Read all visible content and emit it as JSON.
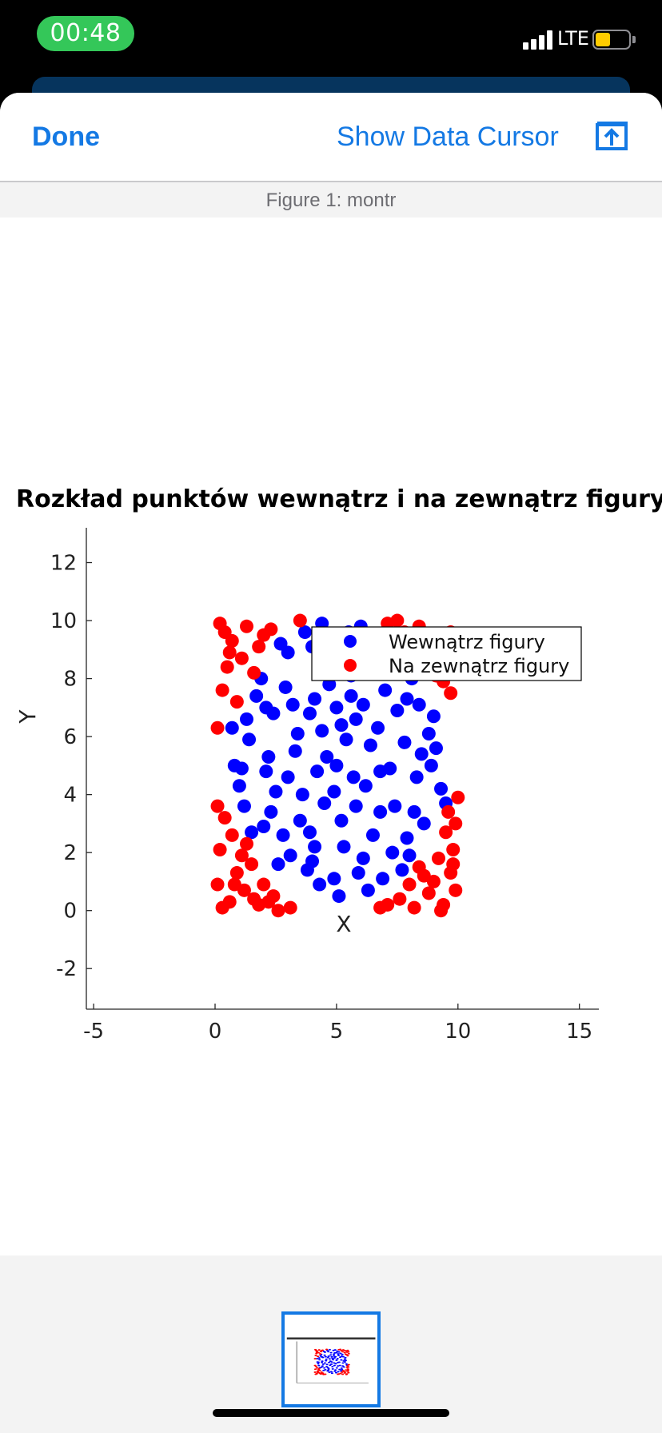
{
  "status": {
    "time": "00:48",
    "network": "LTE",
    "battery_level": 0.45
  },
  "nav": {
    "done_label": "Done",
    "cursor_label": "Show Data Cursor",
    "share_icon": "share-icon"
  },
  "figure": {
    "window_title": "Figure 1: montr"
  },
  "colors": {
    "accent": "#1479e4",
    "inside": "#0000ff",
    "outside": "#ff0000",
    "time_pill": "#34c759"
  },
  "chart_data": {
    "type": "scatter",
    "title": "Rozkład punktów wewnątrz i na zewnątrz figury",
    "xlabel": "X",
    "ylabel": "Y",
    "xlim": [
      -5.3,
      15.8
    ],
    "ylim": [
      -3.4,
      13.2
    ],
    "xticks": [
      -5,
      0,
      5,
      10,
      15
    ],
    "xtick_labels": [
      "-5",
      "0",
      "5",
      "10",
      "15"
    ],
    "yticks": [
      -2,
      0,
      2,
      4,
      6,
      8,
      10,
      12
    ],
    "ytick_labels": [
      "-2",
      "0",
      "2",
      "4",
      "6",
      "8",
      "10",
      "12"
    ],
    "grid": false,
    "legend_position": "top-right",
    "region": {
      "shape": "circle",
      "center": [
        5,
        5
      ],
      "radius": 5
    },
    "series": [
      {
        "name": "Wewnątrz figury",
        "color": "#0000ff",
        "points": [
          [
            5.0,
            5.0
          ],
          [
            3.2,
            7.1
          ],
          [
            6.8,
            3.4
          ],
          [
            4.1,
            2.2
          ],
          [
            7.5,
            6.9
          ],
          [
            2.1,
            4.8
          ],
          [
            5.9,
            8.6
          ],
          [
            3.6,
            4.0
          ],
          [
            6.4,
            5.7
          ],
          [
            4.9,
            1.1
          ],
          [
            8.3,
            4.6
          ],
          [
            1.4,
            5.9
          ],
          [
            5.5,
            9.6
          ],
          [
            2.8,
            2.6
          ],
          [
            7.9,
            2.5
          ],
          [
            4.4,
            6.2
          ],
          [
            6.1,
            1.8
          ],
          [
            3.0,
            8.9
          ],
          [
            8.8,
            6.1
          ],
          [
            1.2,
            3.6
          ],
          [
            5.2,
            3.1
          ],
          [
            6.9,
            8.2
          ],
          [
            2.4,
            6.8
          ],
          [
            4.7,
            7.8
          ],
          [
            7.2,
            4.9
          ],
          [
            3.8,
            1.4
          ],
          [
            9.3,
            4.2
          ],
          [
            0.8,
            5.0
          ],
          [
            5.8,
            6.6
          ],
          [
            4.0,
            9.1
          ],
          [
            6.6,
            9.3
          ],
          [
            2.0,
            2.9
          ],
          [
            8.1,
            8.0
          ],
          [
            3.3,
            5.5
          ],
          [
            5.1,
            0.5
          ],
          [
            7.7,
            1.4
          ],
          [
            1.7,
            7.4
          ],
          [
            6.2,
            4.3
          ],
          [
            4.5,
            3.7
          ],
          [
            8.6,
            3.0
          ],
          [
            2.7,
            9.2
          ],
          [
            5.6,
            7.4
          ],
          [
            3.9,
            6.8
          ],
          [
            7.0,
            7.6
          ],
          [
            1.0,
            4.3
          ],
          [
            6.3,
            0.7
          ],
          [
            4.2,
            4.8
          ],
          [
            9.1,
            5.6
          ],
          [
            2.2,
            5.3
          ],
          [
            5.3,
            2.2
          ],
          [
            7.4,
            3.6
          ],
          [
            3.5,
            3.1
          ],
          [
            6.0,
            9.8
          ],
          [
            4.8,
            8.7
          ],
          [
            8.4,
            7.1
          ],
          [
            1.5,
            2.7
          ],
          [
            5.7,
            4.6
          ],
          [
            2.9,
            7.7
          ],
          [
            7.8,
            5.8
          ],
          [
            4.3,
            0.9
          ],
          [
            6.7,
            6.3
          ],
          [
            3.1,
            1.9
          ],
          [
            9.5,
            3.7
          ],
          [
            0.7,
            6.3
          ],
          [
            5.4,
            5.9
          ],
          [
            2.5,
            4.1
          ],
          [
            7.1,
            9.0
          ],
          [
            4.6,
            5.3
          ],
          [
            8.0,
            1.9
          ],
          [
            1.9,
            8.0
          ],
          [
            6.5,
            2.6
          ],
          [
            3.7,
            9.6
          ],
          [
            5.0,
            7.0
          ],
          [
            8.9,
            5.0
          ],
          [
            2.3,
            3.4
          ],
          [
            4.1,
            7.3
          ],
          [
            7.6,
            8.4
          ],
          [
            5.9,
            1.3
          ],
          [
            3.4,
            6.1
          ],
          [
            6.8,
            4.8
          ],
          [
            1.3,
            6.6
          ],
          [
            9.0,
            6.7
          ],
          [
            4.9,
            4.1
          ],
          [
            2.6,
            1.6
          ],
          [
            7.3,
            2.0
          ],
          [
            5.6,
            8.1
          ],
          [
            3.9,
            2.7
          ],
          [
            6.1,
            7.1
          ],
          [
            8.5,
            5.4
          ],
          [
            1.1,
            4.9
          ],
          [
            4.4,
            9.9
          ],
          [
            6.9,
            1.1
          ],
          [
            3.0,
            4.6
          ],
          [
            5.2,
            6.4
          ],
          [
            7.9,
            7.3
          ],
          [
            2.1,
            7.0
          ],
          [
            5.8,
            3.6
          ],
          [
            4.0,
            1.7
          ],
          [
            8.2,
            3.4
          ],
          [
            6.4,
            8.7
          ]
        ]
      },
      {
        "name": "Na zewnątrz figury",
        "color": "#ff0000",
        "points": [
          [
            0.2,
            9.9
          ],
          [
            0.7,
            9.3
          ],
          [
            1.3,
            9.8
          ],
          [
            0.5,
            8.4
          ],
          [
            1.8,
            9.1
          ],
          [
            0.3,
            7.6
          ],
          [
            1.1,
            8.7
          ],
          [
            2.3,
            9.7
          ],
          [
            0.9,
            7.2
          ],
          [
            1.6,
            8.2
          ],
          [
            0.1,
            6.3
          ],
          [
            0.6,
            8.9
          ],
          [
            2.0,
            9.5
          ],
          [
            3.5,
            10.0
          ],
          [
            0.4,
            9.6
          ],
          [
            7.1,
            9.9
          ],
          [
            7.8,
            9.6
          ],
          [
            8.4,
            9.8
          ],
          [
            9.2,
            9.4
          ],
          [
            9.7,
            9.6
          ],
          [
            8.8,
            8.7
          ],
          [
            9.5,
            8.9
          ],
          [
            10.0,
            8.3
          ],
          [
            9.1,
            8.1
          ],
          [
            9.7,
            7.5
          ],
          [
            8.2,
            9.1
          ],
          [
            9.9,
            9.0
          ],
          [
            7.5,
            10.0
          ],
          [
            9.4,
            7.9
          ],
          [
            8.9,
            9.5
          ],
          [
            0.1,
            0.9
          ],
          [
            0.6,
            0.3
          ],
          [
            1.2,
            0.7
          ],
          [
            1.8,
            0.2
          ],
          [
            2.4,
            0.5
          ],
          [
            0.3,
            0.1
          ],
          [
            0.9,
            1.3
          ],
          [
            1.5,
            1.6
          ],
          [
            0.2,
            2.1
          ],
          [
            0.7,
            2.6
          ],
          [
            1.1,
            1.9
          ],
          [
            2.0,
            0.9
          ],
          [
            2.6,
            0.0
          ],
          [
            3.1,
            0.1
          ],
          [
            0.4,
            3.2
          ],
          [
            0.1,
            3.6
          ],
          [
            1.3,
            2.3
          ],
          [
            2.2,
            0.3
          ],
          [
            0.8,
            0.9
          ],
          [
            1.6,
            0.4
          ],
          [
            9.9,
            0.7
          ],
          [
            9.4,
            0.2
          ],
          [
            8.8,
            0.6
          ],
          [
            8.2,
            0.1
          ],
          [
            7.6,
            0.4
          ],
          [
            9.7,
            1.3
          ],
          [
            9.2,
            1.8
          ],
          [
            9.8,
            2.1
          ],
          [
            9.5,
            2.7
          ],
          [
            8.6,
            1.2
          ],
          [
            7.1,
            0.2
          ],
          [
            9.9,
            3.0
          ],
          [
            10.0,
            3.9
          ],
          [
            9.6,
            3.4
          ],
          [
            9.0,
            1.0
          ],
          [
            8.0,
            0.9
          ],
          [
            6.8,
            0.1
          ],
          [
            9.3,
            0.0
          ],
          [
            9.8,
            1.6
          ],
          [
            8.4,
            1.5
          ]
        ]
      }
    ]
  }
}
